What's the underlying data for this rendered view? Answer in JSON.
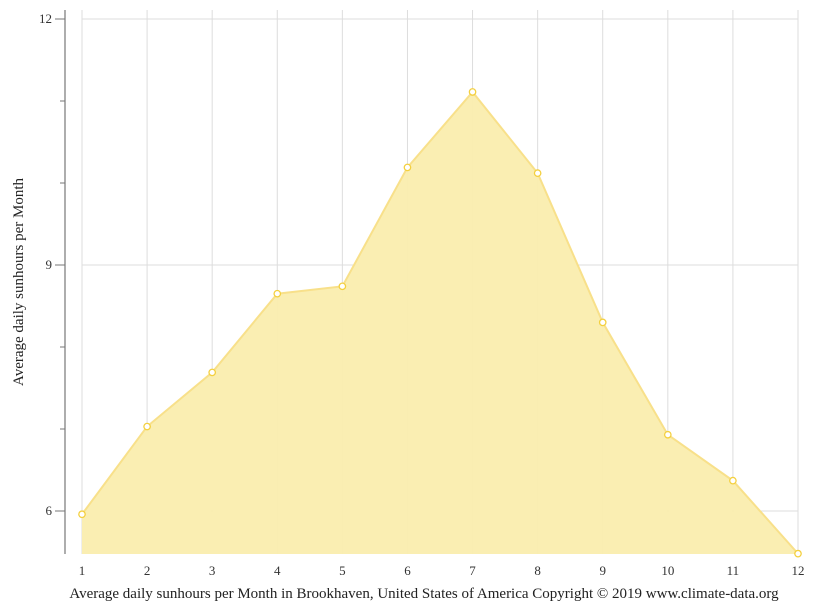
{
  "chart_data": {
    "type": "area",
    "title": "",
    "xlabel": "",
    "ylabel": "Average daily sunhours per Month",
    "caption": "Average daily sunhours per Month in Brookhaven, United States of America Copyright © 2019 www.climate-data.org",
    "categories": [
      "1",
      "2",
      "3",
      "4",
      "5",
      "6",
      "7",
      "8",
      "9",
      "10",
      "11",
      "12"
    ],
    "series": [
      {
        "name": "Average daily sunhours",
        "values": [
          5.96,
          7.03,
          7.69,
          8.65,
          8.74,
          10.19,
          11.11,
          10.12,
          8.3,
          6.93,
          6.37,
          5.48
        ]
      }
    ],
    "yticks": [
      6,
      9,
      12
    ],
    "yminor_ticks": [
      7,
      8,
      10,
      11
    ],
    "ylim": [
      5.48,
      12.1
    ],
    "grid": true,
    "legend": "none",
    "colors": {
      "fill": "#FAEDAE",
      "line": "#F8E08A",
      "marker_stroke": "#F4D03F",
      "marker_fill": "#FFFFFF",
      "grid": "#DDDDDD",
      "axis": "#777777"
    }
  }
}
